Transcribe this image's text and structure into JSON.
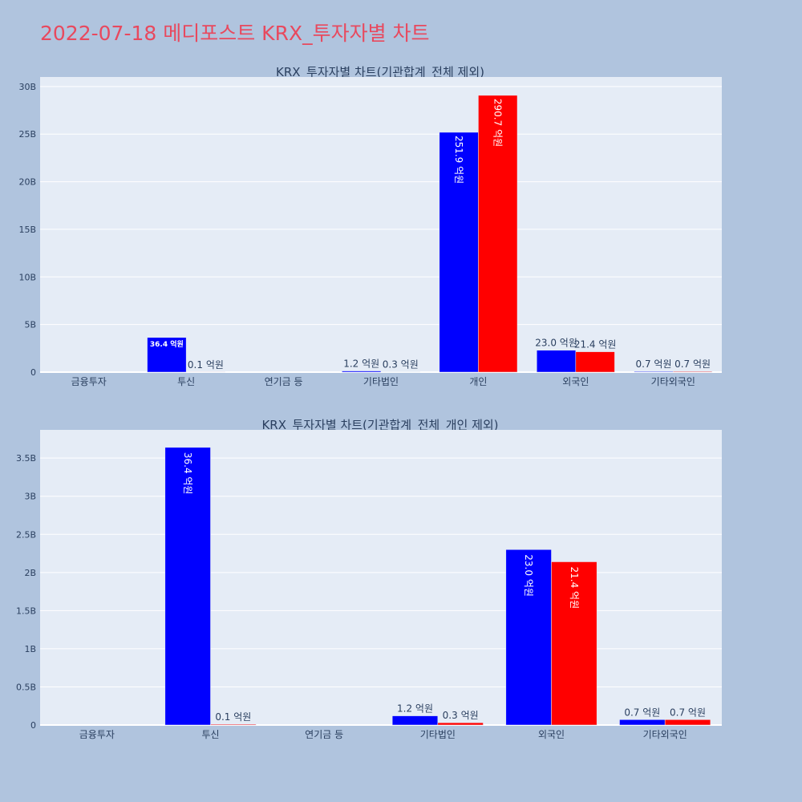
{
  "page": {
    "title": "2022-07-18 메디포스트 KRX_투자자별 차트"
  },
  "chart_data": [
    {
      "type": "bar",
      "title": "KRX_투자자별 차트(기관합계_전체 제외)",
      "categories": [
        "금융투자",
        "투신",
        "연기금 등",
        "기타법인",
        "개인",
        "외국인",
        "기타외국인"
      ],
      "ylim": [
        0,
        31000000000
      ],
      "yticks": [
        0,
        5000000000,
        10000000000,
        15000000000,
        20000000000,
        25000000000,
        30000000000
      ],
      "ytick_labels": [
        "0",
        "5B",
        "10B",
        "15B",
        "20B",
        "25B",
        "30B"
      ],
      "grid": true,
      "series": [
        {
          "color": "#0000ff",
          "values": [
            0,
            3640000000,
            0,
            120000000,
            25190000000,
            2300000000,
            70000000
          ],
          "labels": [
            "",
            "36.4 억원",
            "",
            "1.2 억원",
            "251.9 억원",
            "23.0 억원",
            "0.7 억원"
          ]
        },
        {
          "color": "#ff0000",
          "values": [
            0,
            10000000,
            0,
            30000000,
            29070000000,
            2140000000,
            70000000
          ],
          "labels": [
            "",
            "0.1 억원",
            "",
            "0.3 억원",
            "290.7 억원",
            "21.4 억원",
            "0.7 억원"
          ]
        }
      ]
    },
    {
      "type": "bar",
      "title": "KRX_투자자별 차트(기관합계_전체_개인 제외)",
      "categories": [
        "금융투자",
        "투신",
        "연기금 등",
        "기타법인",
        "외국인",
        "기타외국인"
      ],
      "ylim": [
        0,
        3870000000
      ],
      "yticks": [
        0,
        500000000,
        1000000000,
        1500000000,
        2000000000,
        2500000000,
        3000000000,
        3500000000
      ],
      "ytick_labels": [
        "0",
        "0.5B",
        "1B",
        "1.5B",
        "2B",
        "2.5B",
        "3B",
        "3.5B"
      ],
      "grid": true,
      "series": [
        {
          "color": "#0000ff",
          "values": [
            0,
            3640000000,
            0,
            120000000,
            2300000000,
            70000000
          ],
          "labels": [
            "",
            "36.4 억원",
            "",
            "1.2 억원",
            "23.0 억원",
            "0.7 억원"
          ]
        },
        {
          "color": "#ff0000",
          "values": [
            0,
            10000000,
            0,
            30000000,
            2140000000,
            70000000
          ],
          "labels": [
            "",
            "0.1 억원",
            "",
            "0.3 억원",
            "21.4 억원",
            "0.7 억원"
          ]
        }
      ]
    }
  ]
}
